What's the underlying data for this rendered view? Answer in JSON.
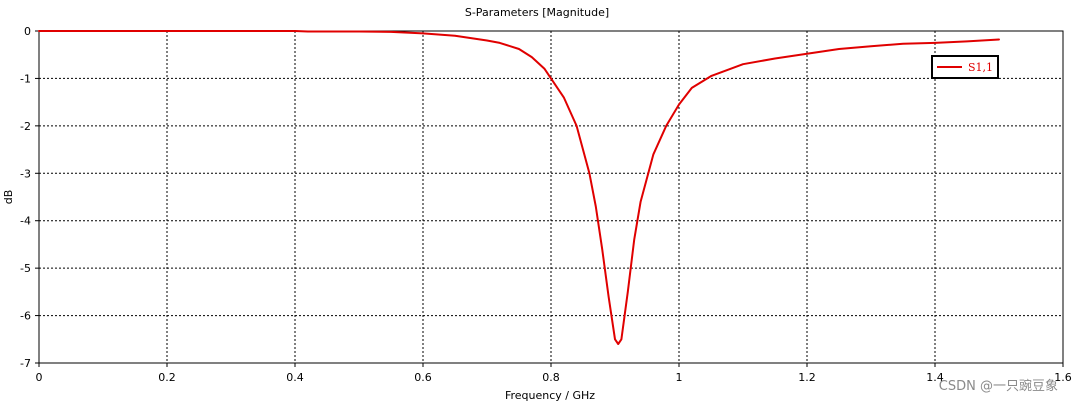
{
  "chart_data": {
    "type": "line",
    "title": "S-Parameters [Magnitude]",
    "xlabel": "Frequency / GHz",
    "ylabel": "dB",
    "xlim": [
      0,
      1.6
    ],
    "ylim": [
      -7,
      0
    ],
    "x_ticks": [
      0,
      0.2,
      0.4,
      0.6,
      0.8,
      1,
      1.2,
      1.4,
      1.6
    ],
    "y_ticks": [
      0,
      -1,
      -2,
      -3,
      -4,
      -5,
      -6,
      -7
    ],
    "grid": true,
    "legend_position": "top-right",
    "series": [
      {
        "name": "S1,1",
        "color": "#e00000",
        "points": [
          [
            0,
            0.0
          ],
          [
            0.2,
            0.0
          ],
          [
            0.4,
            0.0
          ],
          [
            0.42,
            -0.01
          ],
          [
            0.5,
            -0.01
          ],
          [
            0.55,
            -0.02
          ],
          [
            0.6,
            -0.05
          ],
          [
            0.65,
            -0.1
          ],
          [
            0.7,
            -0.2
          ],
          [
            0.72,
            -0.25
          ],
          [
            0.75,
            -0.38
          ],
          [
            0.77,
            -0.55
          ],
          [
            0.79,
            -0.8
          ],
          [
            0.8,
            -1.0
          ],
          [
            0.82,
            -1.4
          ],
          [
            0.84,
            -2.0
          ],
          [
            0.86,
            -3.0
          ],
          [
            0.87,
            -3.7
          ],
          [
            0.88,
            -4.6
          ],
          [
            0.89,
            -5.6
          ],
          [
            0.9,
            -6.5
          ],
          [
            0.905,
            -6.6
          ],
          [
            0.91,
            -6.5
          ],
          [
            0.92,
            -5.5
          ],
          [
            0.93,
            -4.4
          ],
          [
            0.94,
            -3.6
          ],
          [
            0.96,
            -2.6
          ],
          [
            0.98,
            -2.0
          ],
          [
            1.0,
            -1.55
          ],
          [
            1.02,
            -1.2
          ],
          [
            1.05,
            -0.95
          ],
          [
            1.1,
            -0.7
          ],
          [
            1.15,
            -0.58
          ],
          [
            1.2,
            -0.48
          ],
          [
            1.25,
            -0.38
          ],
          [
            1.3,
            -0.32
          ],
          [
            1.35,
            -0.27
          ],
          [
            1.4,
            -0.25
          ],
          [
            1.45,
            -0.22
          ],
          [
            1.5,
            -0.18
          ]
        ]
      }
    ]
  },
  "watermark": "CSDN @一只豌豆象"
}
